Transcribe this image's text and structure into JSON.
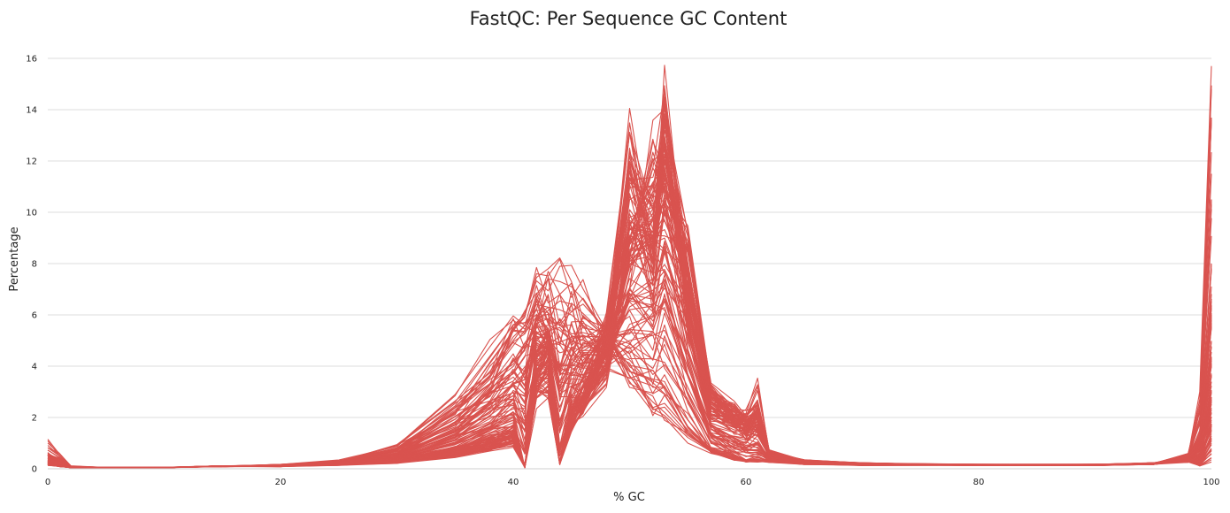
{
  "chart_data": {
    "type": "line",
    "title": "FastQC: Per Sequence GC Content",
    "xlabel": "% GC",
    "ylabel": "Percentage",
    "xlim": [
      0,
      100
    ],
    "ylim": [
      0,
      16
    ],
    "x_ticks": [
      0,
      20,
      40,
      60,
      80,
      100
    ],
    "y_ticks": [
      0,
      2,
      4,
      6,
      8,
      10,
      12,
      14,
      16
    ],
    "grid": "horizontal",
    "legend": "none",
    "line_color": "#d9534f",
    "series": [
      {
        "x": [
          0,
          1,
          2,
          5,
          10,
          15,
          20,
          25,
          30,
          35,
          38,
          40,
          41,
          42,
          43,
          44,
          45,
          46,
          48,
          50,
          52,
          53,
          55,
          57,
          59,
          60,
          61,
          62,
          65,
          70,
          80,
          90,
          95,
          98,
          99,
          100
        ],
        "values": [
          1.0,
          0.6,
          0.1,
          0.05,
          0.05,
          0.1,
          0.15,
          0.25,
          0.7,
          2.2,
          3.6,
          4.8,
          5.4,
          6.8,
          7.4,
          7.3,
          7.1,
          6.6,
          5.2,
          3.6,
          2.6,
          2.2,
          1.3,
          0.7,
          0.4,
          0.3,
          0.3,
          0.25,
          0.2,
          0.15,
          0.15,
          0.15,
          0.2,
          0.5,
          3.0,
          15.7
        ]
      },
      {
        "x": [
          0,
          1,
          2,
          5,
          10,
          15,
          20,
          25,
          30,
          35,
          38,
          40,
          41,
          42,
          43,
          44,
          45,
          46,
          48,
          50,
          52,
          53,
          55,
          57,
          59,
          60,
          61,
          62,
          65,
          70,
          80,
          90,
          95,
          98,
          99,
          100
        ],
        "values": [
          0.6,
          0.3,
          0.05,
          0.05,
          0.05,
          0.1,
          0.15,
          0.3,
          0.8,
          2.4,
          3.8,
          5.0,
          5.6,
          6.4,
          6.3,
          6.2,
          6.0,
          5.6,
          4.8,
          3.4,
          2.2,
          2.0,
          1.0,
          0.6,
          0.4,
          0.3,
          0.3,
          0.3,
          0.2,
          0.15,
          0.15,
          0.15,
          0.2,
          0.6,
          2.5,
          14.8
        ]
      },
      {
        "x": [
          0,
          1,
          2,
          5,
          10,
          15,
          20,
          25,
          30,
          35,
          38,
          40,
          41,
          42,
          43,
          44,
          45,
          46,
          48,
          50,
          52,
          53,
          55,
          57,
          59,
          60,
          61,
          62,
          65,
          70,
          80,
          90,
          95,
          98,
          99,
          100
        ],
        "values": [
          0.5,
          0.3,
          0.05,
          0.05,
          0.05,
          0.1,
          0.15,
          0.3,
          0.9,
          2.6,
          4.4,
          5.6,
          5.7,
          6.0,
          5.8,
          5.6,
          5.2,
          5.0,
          4.6,
          3.8,
          3.5,
          3.4,
          1.6,
          0.7,
          0.4,
          0.3,
          0.3,
          0.3,
          0.2,
          0.15,
          0.15,
          0.15,
          0.2,
          0.5,
          2.0,
          11.5
        ]
      },
      {
        "x": [
          0,
          1,
          2,
          5,
          10,
          15,
          20,
          25,
          30,
          35,
          38,
          40,
          41,
          42,
          43,
          44,
          45,
          46,
          48,
          50,
          52,
          53,
          55,
          57,
          59,
          60,
          61,
          62,
          65,
          70,
          80,
          90,
          95,
          98,
          99,
          100
        ],
        "values": [
          0.3,
          0.2,
          0.05,
          0.05,
          0.05,
          0.1,
          0.1,
          0.25,
          0.6,
          1.8,
          3.0,
          4.2,
          4.8,
          5.5,
          5.6,
          5.4,
          5.0,
          4.8,
          4.6,
          5.0,
          5.2,
          5.4,
          3.6,
          1.2,
          0.5,
          0.3,
          0.3,
          0.3,
          0.2,
          0.15,
          0.15,
          0.15,
          0.2,
          0.4,
          1.8,
          10.5
        ]
      },
      {
        "x": [
          0,
          1,
          2,
          5,
          10,
          15,
          20,
          25,
          30,
          35,
          38,
          40,
          41,
          42,
          43,
          44,
          45,
          46,
          48,
          50,
          52,
          53,
          55,
          57,
          59,
          60,
          61,
          62,
          65,
          70,
          80,
          90,
          95,
          98,
          99,
          100
        ],
        "values": [
          0.3,
          0.15,
          0.05,
          0.05,
          0.05,
          0.1,
          0.1,
          0.2,
          0.4,
          1.0,
          1.6,
          2.0,
          0.05,
          4.6,
          5.0,
          0.2,
          2.8,
          3.6,
          5.6,
          11.8,
          8.6,
          14.2,
          6.0,
          2.0,
          1.6,
          1.6,
          1.5,
          0.5,
          0.3,
          0.2,
          0.15,
          0.15,
          0.2,
          0.4,
          1.5,
          8.0
        ]
      },
      {
        "x": [
          0,
          1,
          2,
          5,
          10,
          15,
          20,
          25,
          30,
          35,
          38,
          40,
          41,
          42,
          43,
          44,
          45,
          46,
          48,
          50,
          52,
          53,
          55,
          57,
          59,
          60,
          61,
          62,
          65,
          70,
          80,
          90,
          95,
          98,
          99,
          100
        ],
        "values": [
          0.3,
          0.15,
          0.05,
          0.05,
          0.05,
          0.1,
          0.1,
          0.2,
          0.35,
          0.8,
          1.2,
          1.6,
          0.05,
          4.2,
          4.6,
          0.2,
          2.4,
          3.2,
          5.2,
          12.2,
          8.0,
          13.5,
          7.0,
          2.4,
          2.0,
          1.7,
          2.0,
          0.6,
          0.3,
          0.2,
          0.15,
          0.15,
          0.2,
          0.4,
          1.2,
          6.0
        ]
      },
      {
        "x": [
          0,
          1,
          2,
          5,
          10,
          15,
          20,
          25,
          30,
          35,
          38,
          40,
          41,
          42,
          43,
          44,
          45,
          46,
          48,
          50,
          52,
          53,
          55,
          57,
          59,
          60,
          61,
          62,
          65,
          70,
          80,
          90,
          95,
          98,
          99,
          100
        ],
        "values": [
          0.2,
          0.1,
          0.05,
          0.05,
          0.05,
          0.1,
          0.1,
          0.2,
          0.3,
          0.7,
          1.0,
          1.3,
          0.05,
          3.8,
          4.2,
          0.2,
          2.0,
          2.8,
          4.6,
          10.6,
          9.2,
          12.6,
          7.5,
          2.6,
          2.2,
          1.8,
          2.2,
          0.6,
          0.3,
          0.2,
          0.15,
          0.15,
          0.2,
          0.3,
          1.0,
          4.0
        ]
      },
      {
        "x": [
          0,
          1,
          2,
          5,
          10,
          15,
          20,
          25,
          30,
          35,
          38,
          40,
          41,
          42,
          43,
          44,
          45,
          46,
          48,
          50,
          52,
          53,
          55,
          57,
          59,
          60,
          61,
          62,
          65,
          70,
          80,
          90,
          95,
          98,
          99,
          100
        ],
        "values": [
          0.2,
          0.1,
          0.05,
          0.05,
          0.05,
          0.1,
          0.1,
          0.2,
          0.3,
          0.6,
          0.9,
          1.1,
          0.05,
          3.4,
          3.8,
          0.2,
          1.8,
          2.4,
          4.2,
          9.8,
          10.2,
          11.6,
          8.0,
          2.8,
          2.4,
          2.0,
          3.2,
          0.7,
          0.3,
          0.2,
          0.15,
          0.15,
          0.2,
          0.3,
          0.9,
          3.0
        ]
      },
      {
        "x": [
          0,
          1,
          2,
          5,
          10,
          15,
          20,
          25,
          30,
          35,
          38,
          40,
          41,
          42,
          43,
          44,
          45,
          46,
          48,
          50,
          52,
          53,
          55,
          57,
          59,
          60,
          61,
          62,
          65,
          70,
          80,
          90,
          95,
          98,
          99,
          100
        ],
        "values": [
          0.15,
          0.1,
          0.05,
          0.05,
          0.05,
          0.1,
          0.1,
          0.15,
          0.25,
          0.5,
          0.8,
          1.0,
          0.05,
          3.0,
          3.4,
          0.2,
          1.6,
          2.2,
          3.8,
          9.0,
          10.8,
          11.0,
          8.4,
          3.0,
          2.2,
          1.9,
          2.0,
          0.6,
          0.3,
          0.2,
          0.15,
          0.15,
          0.2,
          0.3,
          0.8,
          2.0
        ]
      },
      {
        "x": [
          0,
          1,
          2,
          5,
          10,
          15,
          20,
          25,
          30,
          35,
          38,
          40,
          41,
          42,
          43,
          44,
          45,
          46,
          48,
          50,
          52,
          53,
          55,
          57,
          59,
          60,
          61,
          62,
          65,
          70,
          80,
          90,
          95,
          98,
          99,
          100
        ],
        "values": [
          0.15,
          0.1,
          0.05,
          0.05,
          0.05,
          0.1,
          0.1,
          0.15,
          0.25,
          0.6,
          0.9,
          1.2,
          0.05,
          2.8,
          3.2,
          0.2,
          1.8,
          2.6,
          4.4,
          8.4,
          12.0,
          12.4,
          7.8,
          2.6,
          2.0,
          1.7,
          1.8,
          0.6,
          0.3,
          0.2,
          0.15,
          0.15,
          0.2,
          0.3,
          0.7,
          1.5
        ]
      }
    ]
  }
}
